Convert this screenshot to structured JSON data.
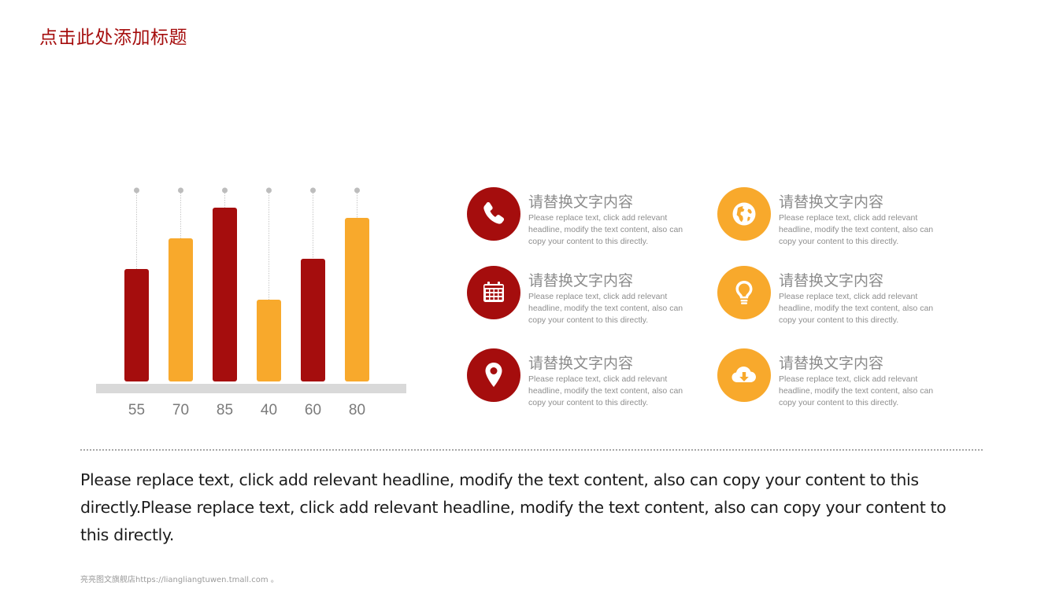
{
  "slide": {
    "title": "点击此处添加标题",
    "paragraph": "Please replace text, click add relevant headline, modify the text content, also can copy your content to this directly.Please replace text, click add relevant headline, modify the text content, also can copy your content to this directly.",
    "footer": "亮亮图文旗舰店https://liangliangtuwen.tmall.com 。"
  },
  "colors": {
    "red": "#a50d0d",
    "orange": "#f8a92c",
    "baseline": "#d9d9d9",
    "dot": "#bdbdbd"
  },
  "chart_data": {
    "type": "bar",
    "categories": [
      "55",
      "70",
      "85",
      "40",
      "60",
      "80"
    ],
    "values": [
      55,
      70,
      85,
      40,
      60,
      80
    ],
    "bar_colors": [
      "red",
      "orange",
      "red",
      "orange",
      "red",
      "orange"
    ],
    "title": "",
    "xlabel": "",
    "ylabel": "",
    "ylim": [
      0,
      100
    ],
    "grid": false,
    "legend": "none"
  },
  "features": [
    {
      "icon": "phone-icon",
      "color": "red",
      "heading": "请替换文字内容",
      "body": "Please replace text, click add relevant headline, modify the text content, also can copy your content to this directly."
    },
    {
      "icon": "globe-icon",
      "color": "orange",
      "heading": "请替换文字内容",
      "body": "Please replace text, click add relevant headline, modify the text content, also can copy your content to this directly."
    },
    {
      "icon": "calendar-icon",
      "color": "red",
      "heading": "请替换文字内容",
      "body": "Please replace text, click add relevant headline, modify the text content, also can copy your content to this directly."
    },
    {
      "icon": "lightbulb-icon",
      "color": "orange",
      "heading": "请替换文字内容",
      "body": "Please replace text, click add relevant headline, modify the text content, also can copy your content to this directly."
    },
    {
      "icon": "location-pin-icon",
      "color": "red",
      "heading": "请替换文字内容",
      "body": "Please replace text, click add relevant headline, modify the text content, also can copy your content to this directly."
    },
    {
      "icon": "cloud-download-icon",
      "color": "orange",
      "heading": "请替换文字内容",
      "body": "Please replace text, click add relevant headline, modify the text content, also can copy your content to this directly."
    }
  ]
}
